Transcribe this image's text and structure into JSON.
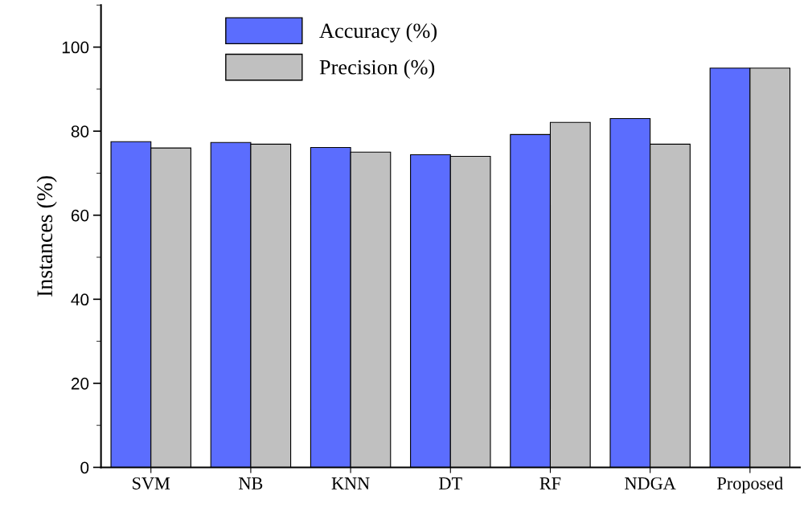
{
  "chart_data": {
    "type": "bar",
    "ylabel": "Instances (%)",
    "categories": [
      "SVM",
      "NB",
      "KNN",
      "DT",
      "RF",
      "NDGA",
      "Proposed"
    ],
    "series": [
      {
        "name": "Accuracy (%)",
        "color": "#5b6dfe",
        "values": [
          77.5,
          77.3,
          76.1,
          74.4,
          79.2,
          83.0,
          95.0
        ]
      },
      {
        "name": "Precision (%)",
        "color": "#c0c0c0",
        "values": [
          76.0,
          76.9,
          75.0,
          74.0,
          82.1,
          76.9,
          95.0
        ]
      }
    ],
    "ylim": [
      0,
      110
    ],
    "yticks": [
      0,
      20,
      40,
      60,
      80,
      100
    ],
    "grid": false,
    "legend": "top"
  }
}
